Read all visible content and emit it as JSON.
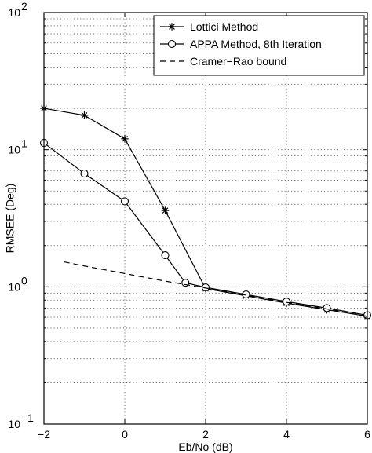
{
  "chart_data": {
    "type": "line",
    "title": "",
    "xlabel": "Eb/No (dB)",
    "ylabel": "RMSEE (Deg)",
    "xlim": [
      -2,
      6
    ],
    "ylim": [
      0.1,
      100
    ],
    "yscale": "log",
    "grid": true,
    "legend_position": "top-right",
    "x_ticks": [
      {
        "value": -2,
        "label": "−2"
      },
      {
        "value": 0,
        "label": "0"
      },
      {
        "value": 2,
        "label": "2"
      },
      {
        "value": 4,
        "label": "4"
      },
      {
        "value": 6,
        "label": "6"
      }
    ],
    "y_ticks": [
      {
        "value": 0.1,
        "base": "10",
        "exp": "−1"
      },
      {
        "value": 1,
        "base": "10",
        "exp": "0"
      },
      {
        "value": 10,
        "base": "10",
        "exp": "1"
      },
      {
        "value": 100,
        "base": "10",
        "exp": "2"
      }
    ],
    "series": [
      {
        "name": "Lottici Method",
        "marker": "star",
        "line_style": "solid",
        "x": [
          -2,
          -1,
          0,
          1,
          2,
          3,
          4,
          5,
          6
        ],
        "y": [
          20.0,
          17.8,
          12.0,
          3.6,
          0.97,
          0.86,
          0.76,
          0.68,
          0.61
        ]
      },
      {
        "name": "APPA Method, 8th Iteration",
        "marker": "circle",
        "line_style": "solid",
        "x": [
          -2,
          -1,
          0,
          1,
          1.5,
          2,
          3,
          4,
          5,
          6
        ],
        "y": [
          11.2,
          6.7,
          4.2,
          1.7,
          1.07,
          0.99,
          0.88,
          0.78,
          0.7,
          0.62
        ]
      },
      {
        "name": "Cramer−Rao bound",
        "marker": "none",
        "line_style": "dashed",
        "x": [
          -1.5,
          -1,
          0,
          1,
          2,
          3,
          4,
          5,
          6
        ],
        "y": [
          1.52,
          1.42,
          1.25,
          1.1,
          0.98,
          0.87,
          0.77,
          0.69,
          0.61
        ]
      }
    ]
  }
}
